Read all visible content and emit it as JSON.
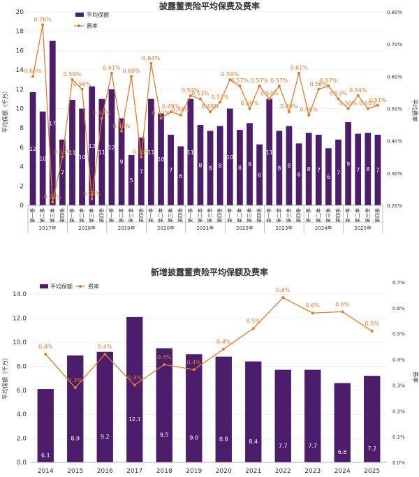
{
  "chart_data": [
    {
      "type": "bar+line",
      "title": "披露董责险平均保费及费率",
      "legend": [
        "平均保额",
        "费率"
      ],
      "ylabel_left": "平均保额（千万）",
      "ylabel_right": "平均费率",
      "ylim_left": [
        0,
        20
      ],
      "ylim_right": [
        0.2,
        0.8
      ],
      "left_ticks": [
        "0",
        "2",
        "4",
        "6",
        "8",
        "10",
        "12",
        "14",
        "16",
        "18",
        "20"
      ],
      "right_ticks": [
        "0.20%",
        "0.30%",
        "0.40%",
        "0.50%",
        "0.60%",
        "0.70%",
        "0.80%"
      ],
      "quarter_labels": [
        "第一季",
        "第二季",
        "第三季",
        "第四季"
      ],
      "years": [
        "2017年",
        "2018年",
        "2019年",
        "2020年",
        "2021年",
        "2022年",
        "2023年",
        "2024年",
        "2025年"
      ],
      "values": [
        11.7,
        9.7,
        17,
        6.8,
        10.9,
        10,
        12.3,
        11,
        12,
        9,
        5.2,
        7,
        11,
        9.5,
        7.3,
        6.1,
        11,
        8.3,
        7.7,
        8.2,
        10,
        7.8,
        8.5,
        6.3,
        11,
        7.7,
        8.2,
        6.4,
        7.5,
        7.3,
        5.9,
        6.8,
        8.6,
        7.4,
        7.5,
        7.3
      ],
      "value_labels": [
        "12",
        "10",
        "17",
        "7",
        "11",
        "10",
        "12",
        "11",
        "12",
        "9",
        "5",
        "7",
        "11",
        "10",
        "7",
        "6",
        "11",
        "8",
        "8",
        "8",
        "10",
        "8",
        "9",
        "6",
        "11",
        "8",
        "8",
        "6",
        "8",
        "7",
        "6",
        "7",
        "9",
        "7",
        "8",
        "7"
      ],
      "rates": [
        0.6,
        0.76,
        0.21,
        0.35,
        0.59,
        0.56,
        0.22,
        0.47,
        0.61,
        0.43,
        0.6,
        0.35,
        0.64,
        0.47,
        0.49,
        0.48,
        0.54,
        0.53,
        0.49,
        0.52,
        0.59,
        0.57,
        0.5,
        0.57,
        0.53,
        0.57,
        0.49,
        0.61,
        0.48,
        0.56,
        0.57,
        0.53,
        0.5,
        0.54,
        0.5,
        0.51
      ],
      "rate_labels": [
        "0.60%",
        "0.76%",
        "0.21%",
        "0.35%",
        "0.59%",
        "0.56%",
        "0.22%",
        "0.47%",
        "0.61%",
        "0.43%",
        "0.60%",
        "0.35%",
        "0.64%",
        "0.47%",
        "0.49%",
        "0.48%",
        "0.54%",
        "0.53%",
        "0.49%",
        "0.52%",
        "0.59%",
        "0.57%",
        "0.50%",
        "0.57%",
        "0.53%",
        "0.57%",
        "0.49%",
        "0.61%",
        "0.48%",
        "0.56%",
        "0.57%",
        "0.53%",
        "0.50%",
        "0.54%",
        "0.50%",
        "0.51%"
      ]
    },
    {
      "type": "bar+line",
      "title": "新增披露董责险平均保额及费率",
      "legend": [
        "平均保额",
        "费率"
      ],
      "ylabel_left": "平均保额（千万）",
      "ylabel_right": "费率",
      "ylim_left": [
        0,
        15
      ],
      "ylim_right": [
        0,
        0.7
      ],
      "left_ticks": [
        "0.0",
        "2.0",
        "4.0",
        "6.0",
        "8.0",
        "10.0",
        "12.0",
        "14.0"
      ],
      "right_ticks": [
        "0.0%",
        "0.1%",
        "0.2%",
        "0.3%",
        "0.4%",
        "0.5%",
        "0.6%",
        "0.7%"
      ],
      "categories": [
        "2014",
        "2015",
        "2016",
        "2017",
        "2018",
        "2019",
        "2020",
        "2021",
        "2022",
        "2023",
        "2024",
        "2025"
      ],
      "values": [
        6.1,
        8.9,
        9.2,
        12.1,
        9.5,
        9.0,
        8.8,
        8.4,
        7.7,
        7.7,
        6.6,
        7.2
      ],
      "value_labels": [
        "6.1",
        "8.9",
        "9.2",
        "12.1",
        "9.5",
        "9.0",
        "8.8",
        "8.4",
        "7.7",
        "7.7",
        "6.6",
        "7.2"
      ],
      "rates": [
        0.42,
        0.29,
        0.42,
        0.3,
        0.38,
        0.36,
        0.44,
        0.52,
        0.64,
        0.58,
        0.585,
        0.51
      ],
      "rate_labels": [
        "0.4%",
        "0.3%",
        "0.4%",
        "0.3%",
        "0.4%",
        "0.4%",
        "0.4%",
        "0.5%",
        "0.6%",
        "0.6%",
        "0.6%",
        "0.5%"
      ]
    }
  ],
  "colors": {
    "bar": "#4b1d6b",
    "line": "#e07b2f",
    "grid": "#e6e6e6",
    "axis": "#999999"
  }
}
